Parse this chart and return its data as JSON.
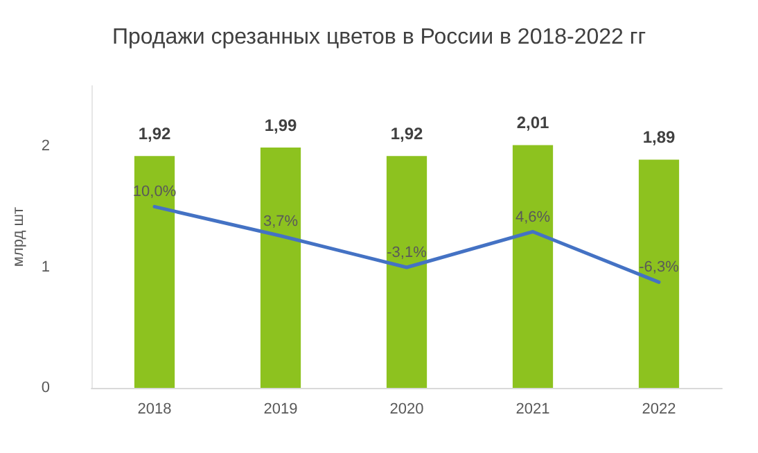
{
  "chart_data": {
    "type": "bar",
    "title": "Продажи срезанных цветов в России в 2018-2022 гг",
    "ylabel": "млрд шт",
    "categories": [
      "2018",
      "2019",
      "2020",
      "2021",
      "2022"
    ],
    "series": [
      {
        "color": "#8dc21f",
        "values": [
          1.92,
          1.99,
          1.92,
          2.01,
          1.89
        ],
        "value_labels": [
          "1,92",
          "1,99",
          "1,92",
          "2,01",
          "1,89"
        ]
      },
      {
        "type": "line",
        "axis": "y2",
        "color": "#4472c4",
        "values": [
          10.0,
          3.7,
          -3.1,
          4.6,
          -6.3
        ],
        "value_labels": [
          "10,0%",
          "3,7%",
          "-3,1%",
          "4,6%",
          "-6,3%"
        ],
        "marker": "none"
      }
    ],
    "ylim": [
      0,
      2.5
    ],
    "yticks": [
      0,
      1,
      2
    ],
    "grid": false
  }
}
